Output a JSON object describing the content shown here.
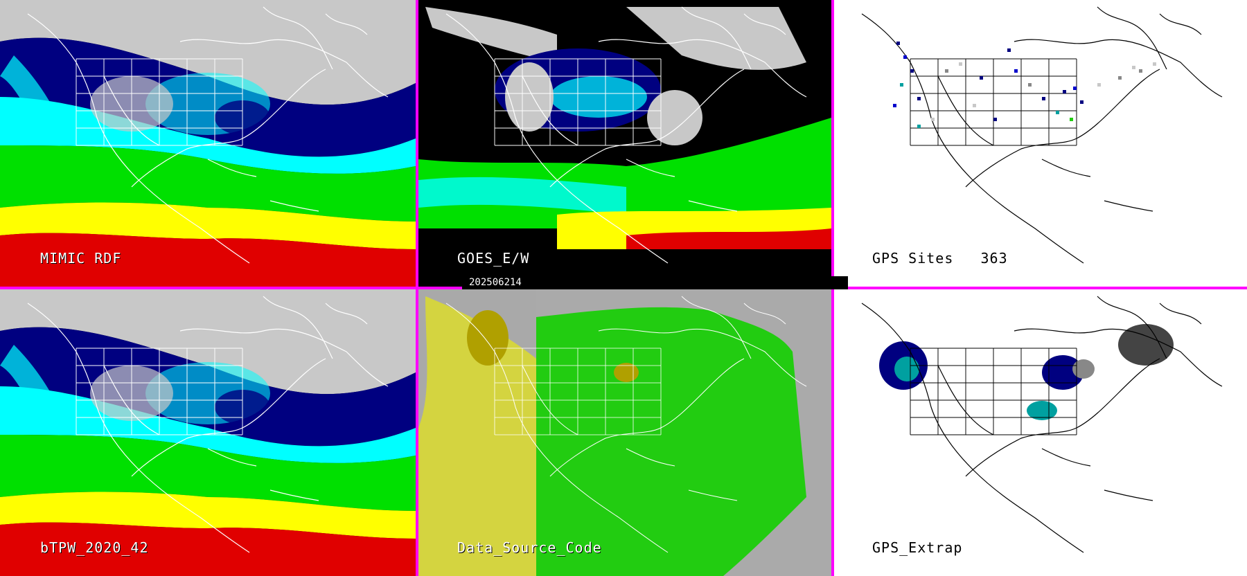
{
  "panels": {
    "mimic": {
      "label": "MIMIC RDF"
    },
    "goes": {
      "label": "GOES_E/W"
    },
    "gps_sites": {
      "label": "GPS Sites",
      "count": "363"
    },
    "btpw": {
      "label": "bTPW_2020_42"
    },
    "data_source": {
      "label": "Data_Source_Code"
    },
    "gps_extrap": {
      "label": "GPS_Extrap"
    }
  },
  "timestamp": "202506214",
  "colors": {
    "separator": "#ff00ff",
    "tpw_scale": [
      "#c8c8c8",
      "#000080",
      "#0000ff",
      "#00ffff",
      "#00e000",
      "#30ff30",
      "#ffff00",
      "#e00000",
      "#ff00ff"
    ],
    "data_source_goes": "#22cc11",
    "data_source_other": "#eeee00",
    "data_source_missing": "#aaaaaa",
    "gps_dots": [
      "#000080",
      "#0000cc",
      "#00a0a0",
      "#888888",
      "#c8c8c8",
      "#22cc11"
    ]
  }
}
